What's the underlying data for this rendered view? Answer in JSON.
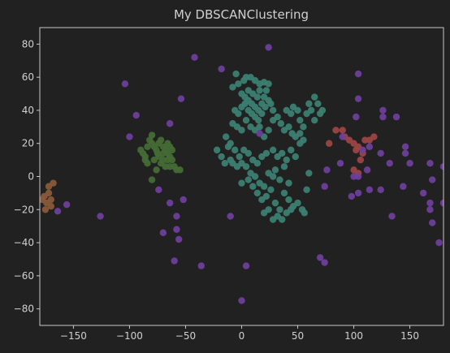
{
  "chart_data": {
    "type": "scatter",
    "title": "My DBSCANClustering",
    "xlabel": "",
    "ylabel": "",
    "xlim": [
      -180,
      180
    ],
    "ylim": [
      -90,
      90
    ],
    "xticks": [
      -150,
      -100,
      -50,
      0,
      50,
      100,
      150
    ],
    "yticks": [
      -80,
      -60,
      -40,
      -20,
      0,
      20,
      40,
      60,
      80
    ],
    "grid": false,
    "colors": {
      "background": "#212121",
      "axes": "#c8c8c8",
      "text": "#d0d0d0"
    },
    "series": [
      {
        "color": "#3c7f72",
        "points": [
          [
            -5,
            62
          ],
          [
            -8,
            54
          ],
          [
            -3,
            56
          ],
          [
            2,
            58
          ],
          [
            4,
            60
          ],
          [
            8,
            60
          ],
          [
            12,
            58
          ],
          [
            16,
            56
          ],
          [
            20,
            57
          ],
          [
            22,
            52
          ],
          [
            24,
            56
          ],
          [
            0,
            50
          ],
          [
            3,
            48
          ],
          [
            6,
            46
          ],
          [
            9,
            44
          ],
          [
            12,
            42
          ],
          [
            15,
            40
          ],
          [
            18,
            44
          ],
          [
            20,
            48
          ],
          [
            6,
            52
          ],
          [
            10,
            50
          ],
          [
            14,
            48
          ],
          [
            16,
            52
          ],
          [
            -6,
            40
          ],
          [
            -3,
            38
          ],
          [
            0,
            42
          ],
          [
            3,
            44
          ],
          [
            6,
            40
          ],
          [
            9,
            38
          ],
          [
            12,
            36
          ],
          [
            15,
            34
          ],
          [
            18,
            38
          ],
          [
            21,
            42
          ],
          [
            24,
            46
          ],
          [
            26,
            44
          ],
          [
            28,
            40
          ],
          [
            -8,
            32
          ],
          [
            -4,
            30
          ],
          [
            0,
            28
          ],
          [
            4,
            34
          ],
          [
            8,
            30
          ],
          [
            12,
            28
          ],
          [
            16,
            30
          ],
          [
            20,
            24
          ],
          [
            24,
            28
          ],
          [
            28,
            34
          ],
          [
            32,
            36
          ],
          [
            35,
            32
          ],
          [
            38,
            28
          ],
          [
            42,
            30
          ],
          [
            45,
            26
          ],
          [
            48,
            24
          ],
          [
            40,
            40
          ],
          [
            44,
            38
          ],
          [
            46,
            42
          ],
          [
            50,
            40
          ],
          [
            52,
            34
          ],
          [
            55,
            30
          ],
          [
            58,
            38
          ],
          [
            60,
            44
          ],
          [
            62,
            40
          ],
          [
            65,
            48
          ],
          [
            68,
            44
          ],
          [
            70,
            38
          ],
          [
            72,
            40
          ],
          [
            65,
            34
          ],
          [
            55,
            22
          ],
          [
            52,
            26
          ],
          [
            -22,
            16
          ],
          [
            -18,
            12
          ],
          [
            -14,
            24
          ],
          [
            -10,
            20
          ],
          [
            -6,
            16
          ],
          [
            -2,
            12
          ],
          [
            2,
            16
          ],
          [
            6,
            14
          ],
          [
            10,
            10
          ],
          [
            14,
            8
          ],
          [
            18,
            12
          ],
          [
            22,
            14
          ],
          [
            28,
            16
          ],
          [
            32,
            12
          ],
          [
            36,
            14
          ],
          [
            40,
            10
          ],
          [
            44,
            16
          ],
          [
            48,
            12
          ],
          [
            52,
            20
          ],
          [
            -12,
            18
          ],
          [
            -10,
            10
          ],
          [
            -8,
            8
          ],
          [
            -4,
            6
          ],
          [
            0,
            8
          ],
          [
            4,
            6
          ],
          [
            8,
            2
          ],
          [
            12,
            0
          ],
          [
            16,
            -4
          ],
          [
            20,
            -6
          ],
          [
            24,
            2
          ],
          [
            28,
            0
          ],
          [
            30,
            4
          ],
          [
            34,
            -2
          ],
          [
            38,
            6
          ],
          [
            42,
            -4
          ],
          [
            -15,
            8
          ],
          [
            0,
            -4
          ],
          [
            6,
            -2
          ],
          [
            10,
            -6
          ],
          [
            14,
            -10
          ],
          [
            18,
            -14
          ],
          [
            22,
            -12
          ],
          [
            26,
            -8
          ],
          [
            30,
            -16
          ],
          [
            34,
            -20
          ],
          [
            38,
            -10
          ],
          [
            42,
            -14
          ],
          [
            46,
            -18
          ],
          [
            50,
            -16
          ],
          [
            54,
            -20
          ],
          [
            20,
            -22
          ],
          [
            24,
            -20
          ],
          [
            28,
            -26
          ],
          [
            32,
            -24
          ],
          [
            36,
            -26
          ],
          [
            40,
            -22
          ],
          [
            44,
            -20
          ],
          [
            56,
            -22
          ],
          [
            58,
            -8
          ],
          [
            60,
            2
          ]
        ]
      },
      {
        "color": "#456b35",
        "points": [
          [
            -88,
            14
          ],
          [
            -90,
            16
          ],
          [
            -86,
            12
          ],
          [
            -84,
            18
          ],
          [
            -82,
            22
          ],
          [
            -80,
            20
          ],
          [
            -78,
            18
          ],
          [
            -76,
            16
          ],
          [
            -74,
            20
          ],
          [
            -72,
            22
          ],
          [
            -70,
            18
          ],
          [
            -68,
            16
          ],
          [
            -66,
            14
          ],
          [
            -64,
            18
          ],
          [
            -62,
            16
          ],
          [
            -80,
            25
          ],
          [
            -78,
            10
          ],
          [
            -74,
            12
          ],
          [
            -70,
            14
          ],
          [
            -66,
            10
          ],
          [
            -64,
            12
          ],
          [
            -62,
            10
          ],
          [
            -68,
            6
          ],
          [
            -64,
            6
          ],
          [
            -60,
            6
          ],
          [
            -58,
            4
          ],
          [
            -55,
            4
          ],
          [
            -76,
            4
          ],
          [
            -72,
            8
          ],
          [
            -80,
            -2
          ],
          [
            -84,
            8
          ],
          [
            -86,
            10
          ],
          [
            -70,
            10
          ],
          [
            -75,
            14
          ],
          [
            -66,
            20
          ]
        ]
      },
      {
        "color": "#9c4545",
        "points": [
          [
            84,
            28
          ],
          [
            90,
            28
          ],
          [
            92,
            24
          ],
          [
            96,
            22
          ],
          [
            100,
            20
          ],
          [
            104,
            18
          ],
          [
            108,
            14
          ],
          [
            102,
            16
          ],
          [
            106,
            10
          ],
          [
            110,
            22
          ],
          [
            114,
            22
          ],
          [
            118,
            24
          ],
          [
            78,
            20
          ],
          [
            100,
            4
          ],
          [
            104,
            2
          ]
        ]
      },
      {
        "color": "#8a5a3a",
        "points": [
          [
            -178,
            -14
          ],
          [
            -176,
            -12
          ],
          [
            -174,
            -16
          ],
          [
            -172,
            -10
          ],
          [
            -170,
            -14
          ],
          [
            -172,
            -6
          ],
          [
            -175,
            -20
          ],
          [
            -170,
            -18
          ],
          [
            -168,
            -4
          ]
        ]
      },
      {
        "color": "#6f3f9c",
        "points": [
          [
            24,
            78
          ],
          [
            -42,
            72
          ],
          [
            -18,
            65
          ],
          [
            104,
            62
          ],
          [
            -104,
            56
          ],
          [
            -54,
            47
          ],
          [
            104,
            47
          ],
          [
            -94,
            37
          ],
          [
            -64,
            32
          ],
          [
            102,
            36
          ],
          [
            126,
            40
          ],
          [
            126,
            36
          ],
          [
            138,
            36
          ],
          [
            -100,
            24
          ],
          [
            90,
            24
          ],
          [
            114,
            18
          ],
          [
            146,
            18
          ],
          [
            146,
            14
          ],
          [
            124,
            14
          ],
          [
            108,
            16
          ],
          [
            88,
            8
          ],
          [
            132,
            8
          ],
          [
            150,
            8
          ],
          [
            76,
            4
          ],
          [
            112,
            4
          ],
          [
            168,
            8
          ],
          [
            180,
            6
          ],
          [
            -74,
            -8
          ],
          [
            -64,
            -16
          ],
          [
            -52,
            -14
          ],
          [
            -56,
            -38
          ],
          [
            -58,
            -24
          ],
          [
            -70,
            -34
          ],
          [
            -58,
            -32
          ],
          [
            -60,
            -51
          ],
          [
            -36,
            -54
          ],
          [
            -10,
            -24
          ],
          [
            4,
            -54
          ],
          [
            0,
            -75
          ],
          [
            70,
            -49
          ],
          [
            74,
            -52
          ],
          [
            74,
            -6
          ],
          [
            98,
            -12
          ],
          [
            104,
            -10
          ],
          [
            104,
            0
          ],
          [
            124,
            -8
          ],
          [
            134,
            -24
          ],
          [
            144,
            -6
          ],
          [
            162,
            -10
          ],
          [
            168,
            -16
          ],
          [
            168,
            -20
          ],
          [
            170,
            -28
          ],
          [
            170,
            -2
          ],
          [
            176,
            -40
          ],
          [
            180,
            -16
          ],
          [
            -156,
            -17
          ],
          [
            -126,
            -24
          ],
          [
            -164,
            -21
          ],
          [
            16,
            26
          ],
          [
            100,
            0
          ],
          [
            114,
            -8
          ]
        ]
      }
    ]
  }
}
